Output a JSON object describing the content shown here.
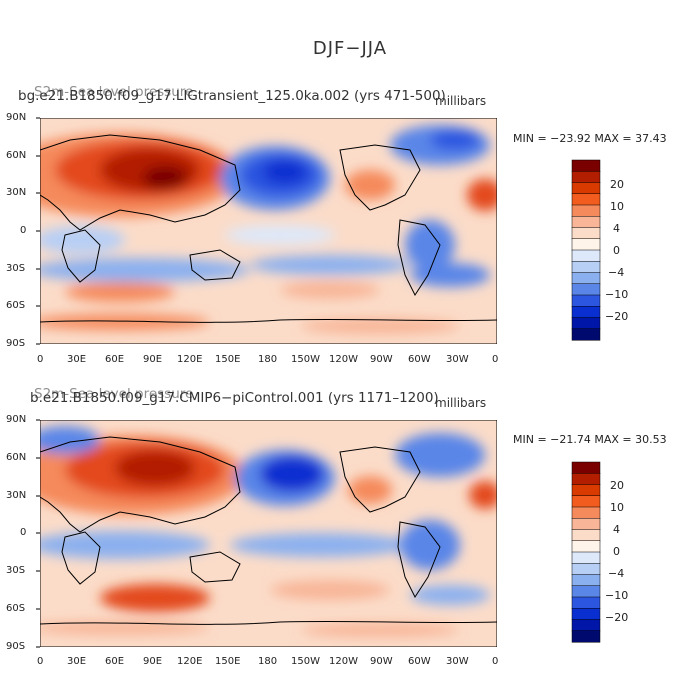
{
  "page": {
    "title": "DJF−JJA"
  },
  "panels": [
    {
      "run_label": "bg.e21.B1850.f09_g17.LIGtransient_125.0ka.002 (yrs 471-500)",
      "overlay_label": "S2m-Sea level pressure",
      "units": "millibars",
      "stats": "MIN = −23.92  MAX =  37.43"
    },
    {
      "run_label": "b.e21.B1850.f09_g17.CMIP6−piControl.001 (yrs 1171–1200)",
      "overlay_label": "S2m-Sea level pressure",
      "units": "millibars",
      "stats": "MIN = −21.74  MAX =  30.53"
    }
  ],
  "axes": {
    "lat_labels": [
      "90N",
      "60N",
      "30N",
      "0",
      "30S",
      "60S",
      "90S"
    ],
    "lon_labels": [
      "0",
      "30E",
      "60E",
      "90E",
      "120E",
      "150E",
      "180",
      "150W",
      "120W",
      "90W",
      "60W",
      "30W",
      "0"
    ]
  },
  "colorbar": {
    "labels": [
      "20",
      "10",
      "4",
      "0",
      "−4",
      "−10",
      "−20"
    ],
    "colors_top_to_bottom": [
      "#7a0000",
      "#b31d00",
      "#d83a00",
      "#f25c1e",
      "#f58a5c",
      "#f8b597",
      "#fbdcc9",
      "#fff4ea",
      "#dde8fa",
      "#b8cff5",
      "#8bb0ef",
      "#5a86e8",
      "#2c55e0",
      "#0a2fd0",
      "#0016a8",
      "#000a6e"
    ]
  },
  "legend_colors": {
    "positive_strong": "#8b0000",
    "positive_mid": "#e34a1a",
    "positive_weak": "#f8c2a6",
    "neutral": "#ffffff",
    "negative_weak": "#c3d7f6",
    "negative_mid": "#3d6fe2",
    "negative_strong": "#0011a0"
  }
}
